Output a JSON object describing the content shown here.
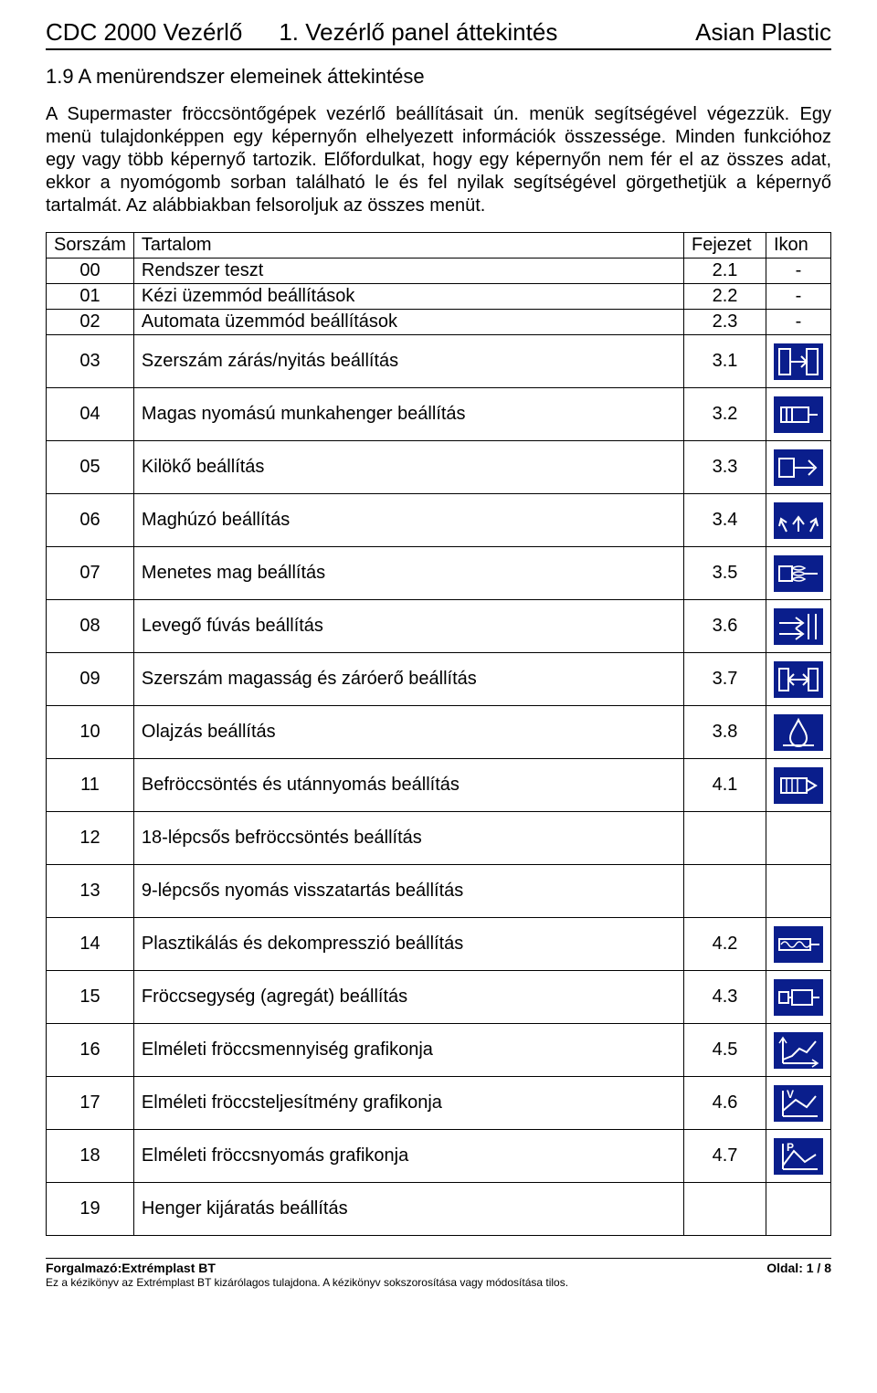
{
  "header": {
    "left": "CDC 2000 Vezérlő",
    "center": "1. Vezérlő panel áttekintés",
    "right": "Asian Plastic"
  },
  "section_title": "1.9 A menürendszer elemeinek áttekintése",
  "body_text": "A Supermaster fröccsöntőgépek vezérlő beállításait ún. menük segítségével végezzük. Egy menü tulajdonképpen egy képernyőn elhelyezett információk összessége. Minden funkcióhoz egy vagy több képernyő tartozik. Előfordulkat, hogy egy képernyőn nem fér el az összes adat, ekkor a nyomógomb sorban található le és fel nyilak segítségével görgethetjük a képernyő tartalmát. Az alábbiakban felsoroljuk az összes menüt.",
  "table": {
    "headers": {
      "sorszam": "Sorszám",
      "tartalom": "Tartalom",
      "fejezet": "Fejezet",
      "ikon": "Ikon"
    },
    "rows": [
      {
        "sor": "00",
        "tart": "Rendszer teszt",
        "fej": "2.1",
        "ikon": "-",
        "tall": false
      },
      {
        "sor": "01",
        "tart": "Kézi üzemmód beállítások",
        "fej": "2.2",
        "ikon": "-",
        "tall": false
      },
      {
        "sor": "02",
        "tart": "Automata üzemmód beállítások",
        "fej": "2.3",
        "ikon": "-",
        "tall": false
      },
      {
        "sor": "03",
        "tart": "Szerszám zárás/nyitás beállítás",
        "fej": "3.1",
        "ikon": "mold",
        "tall": true
      },
      {
        "sor": "04",
        "tart": "Magas nyomású munkahenger beállítás",
        "fej": "3.2",
        "ikon": "cylinder",
        "tall": true
      },
      {
        "sor": "05",
        "tart": "Kilökő beállítás",
        "fej": "3.3",
        "ikon": "eject",
        "tall": true
      },
      {
        "sor": "06",
        "tart": "Maghúzó beállítás",
        "fej": "3.4",
        "ikon": "core",
        "tall": true
      },
      {
        "sor": "07",
        "tart": "Menetes mag beállítás",
        "fej": "3.5",
        "ikon": "thread",
        "tall": true
      },
      {
        "sor": "08",
        "tart": "Levegő fúvás beállítás",
        "fej": "3.6",
        "ikon": "airblow",
        "tall": true
      },
      {
        "sor": "09",
        "tart": "Szerszám magasság és záróerő beállítás",
        "fej": "3.7",
        "ikon": "height",
        "tall": true
      },
      {
        "sor": "10",
        "tart": "Olajzás beállítás",
        "fej": "3.8",
        "ikon": "lube",
        "tall": true
      },
      {
        "sor": "11",
        "tart": "Befröccsöntés és utánnyomás beállítás",
        "fej": "4.1",
        "ikon": "inject",
        "tall": true
      },
      {
        "sor": "12",
        "tart": "18-lépcsős befröccsöntés beállítás",
        "fej": "",
        "ikon": "",
        "tall": true
      },
      {
        "sor": "13",
        "tart": "9-lépcsős nyomás visszatartás beállítás",
        "fej": "",
        "ikon": "",
        "tall": true
      },
      {
        "sor": "14",
        "tart": "Plasztikálás és dekompresszió beállítás",
        "fej": "4.2",
        "ikon": "plast",
        "tall": true
      },
      {
        "sor": "15",
        "tart": "Fröccsegység (agregát) beállítás",
        "fej": "4.3",
        "ikon": "unit",
        "tall": true
      },
      {
        "sor": "16",
        "tart": "Elméleti fröccsmennyiség grafikonja",
        "fej": "4.5",
        "ikon": "graph-q",
        "tall": true
      },
      {
        "sor": "17",
        "tart": "Elméleti fröccsteljesítmény grafikonja",
        "fej": "4.6",
        "ikon": "graph-v",
        "tall": true
      },
      {
        "sor": "18",
        "tart": "Elméleti fröccsnyomás grafikonja",
        "fej": "4.7",
        "ikon": "graph-p",
        "tall": true
      },
      {
        "sor": "19",
        "tart": "Henger kijáratás beállítás",
        "fej": "",
        "ikon": "",
        "tall": true
      }
    ]
  },
  "icons": {
    "bg": "#0a1e8c",
    "fg": "#ffffff"
  },
  "footer": {
    "distributor_label": "Forgalmazó:",
    "distributor_name": "Extrémplast BT",
    "page_label": "Oldal: 1 / 8",
    "disclaimer": "Ez a kézikönyv az Extrémplast BT kizárólagos tulajdona. A kézikönyv sokszorosítása vagy módosítása tilos."
  }
}
